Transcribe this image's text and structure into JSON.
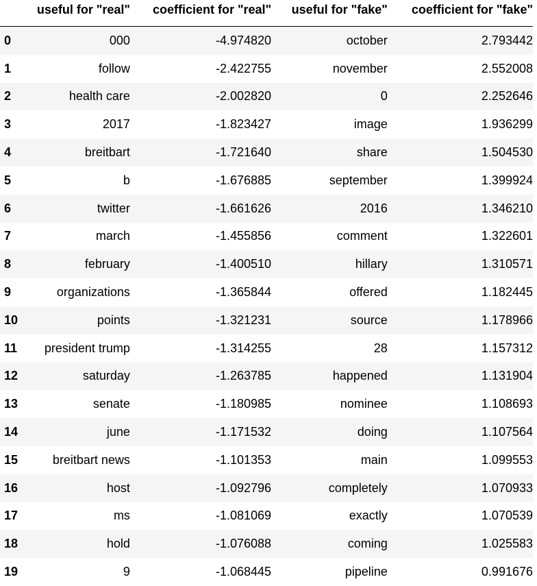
{
  "table": {
    "columns": [
      "useful for \"real\"",
      "coefficient for \"real\"",
      "useful for \"fake\"",
      "coefficient for \"fake\""
    ],
    "rows": [
      {
        "index": "0",
        "real_word": "000",
        "real_coef": "-4.974820",
        "fake_word": "october",
        "fake_coef": "2.793442"
      },
      {
        "index": "1",
        "real_word": "follow",
        "real_coef": "-2.422755",
        "fake_word": "november",
        "fake_coef": "2.552008"
      },
      {
        "index": "2",
        "real_word": "health care",
        "real_coef": "-2.002820",
        "fake_word": "0",
        "fake_coef": "2.252646"
      },
      {
        "index": "3",
        "real_word": "2017",
        "real_coef": "-1.823427",
        "fake_word": "image",
        "fake_coef": "1.936299"
      },
      {
        "index": "4",
        "real_word": "breitbart",
        "real_coef": "-1.721640",
        "fake_word": "share",
        "fake_coef": "1.504530"
      },
      {
        "index": "5",
        "real_word": "b",
        "real_coef": "-1.676885",
        "fake_word": "september",
        "fake_coef": "1.399924"
      },
      {
        "index": "6",
        "real_word": "twitter",
        "real_coef": "-1.661626",
        "fake_word": "2016",
        "fake_coef": "1.346210"
      },
      {
        "index": "7",
        "real_word": "march",
        "real_coef": "-1.455856",
        "fake_word": "comment",
        "fake_coef": "1.322601"
      },
      {
        "index": "8",
        "real_word": "february",
        "real_coef": "-1.400510",
        "fake_word": "hillary",
        "fake_coef": "1.310571"
      },
      {
        "index": "9",
        "real_word": "organizations",
        "real_coef": "-1.365844",
        "fake_word": "offered",
        "fake_coef": "1.182445"
      },
      {
        "index": "10",
        "real_word": "points",
        "real_coef": "-1.321231",
        "fake_word": "source",
        "fake_coef": "1.178966"
      },
      {
        "index": "11",
        "real_word": "president trump",
        "real_coef": "-1.314255",
        "fake_word": "28",
        "fake_coef": "1.157312"
      },
      {
        "index": "12",
        "real_word": "saturday",
        "real_coef": "-1.263785",
        "fake_word": "happened",
        "fake_coef": "1.131904"
      },
      {
        "index": "13",
        "real_word": "senate",
        "real_coef": "-1.180985",
        "fake_word": "nominee",
        "fake_coef": "1.108693"
      },
      {
        "index": "14",
        "real_word": "june",
        "real_coef": "-1.171532",
        "fake_word": "doing",
        "fake_coef": "1.107564"
      },
      {
        "index": "15",
        "real_word": "breitbart news",
        "real_coef": "-1.101353",
        "fake_word": "main",
        "fake_coef": "1.099553"
      },
      {
        "index": "16",
        "real_word": "host",
        "real_coef": "-1.092796",
        "fake_word": "completely",
        "fake_coef": "1.070933"
      },
      {
        "index": "17",
        "real_word": "ms",
        "real_coef": "-1.081069",
        "fake_word": "exactly",
        "fake_coef": "1.070539"
      },
      {
        "index": "18",
        "real_word": "hold",
        "real_coef": "-1.076088",
        "fake_word": "coming",
        "fake_coef": "1.025583"
      },
      {
        "index": "19",
        "real_word": "9",
        "real_coef": "-1.068445",
        "fake_word": "pipeline",
        "fake_coef": "0.991676"
      }
    ]
  },
  "colors": {
    "row_stripe": "#f5f5f5",
    "row_plain": "#ffffff",
    "text": "#000000"
  }
}
